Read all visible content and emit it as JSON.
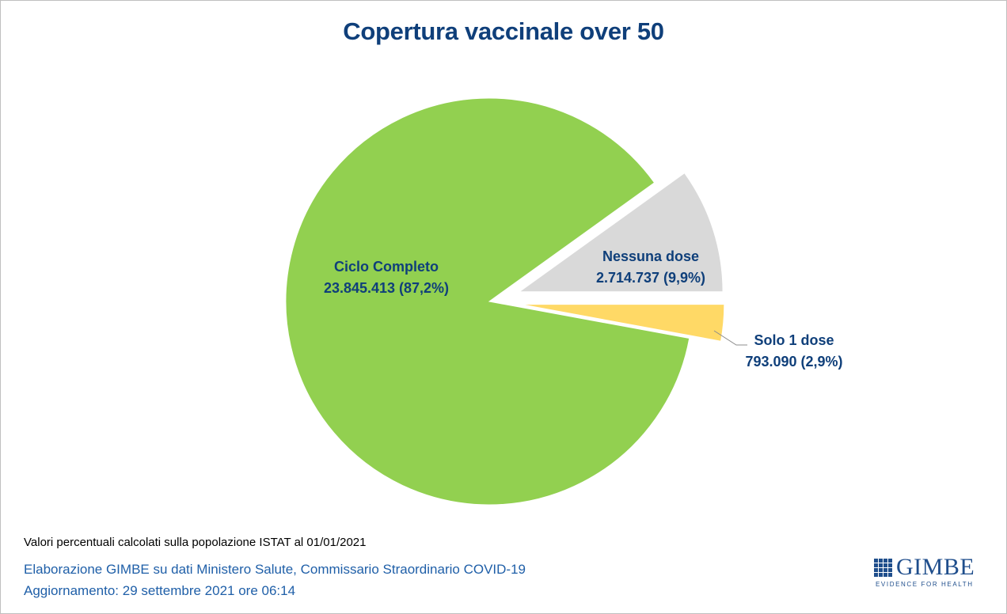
{
  "chart_data": {
    "type": "pie",
    "title": "Copertura vaccinale over 50",
    "slices": [
      {
        "name": "Nessuna dose",
        "value": 2714737,
        "percent": 9.9,
        "label_value": "2.714.737 (9,9%)",
        "color": "#d9d9d9",
        "exploded": true
      },
      {
        "name": "Solo 1 dose",
        "value": 793090,
        "percent": 2.9,
        "label_value": "793.090 (2,9%)",
        "color": "#ffd966",
        "exploded": true
      },
      {
        "name": "Ciclo Completo",
        "value": 23845413,
        "percent": 87.2,
        "label_value": "23.845.413 (87,2%)",
        "color": "#92d050",
        "exploded": false
      }
    ]
  },
  "footer": {
    "note": "Valori percentuali calcolati sulla popolazione ISTAT al 01/01/2021",
    "source": "Elaborazione GIMBE su dati Ministero Salute, Commissario Straordinario COVID-19",
    "updated": "Aggiornamento: 29 settembre 2021 ore 06:14"
  },
  "logo": {
    "name": "GIMBE",
    "tagline": "EVIDENCE FOR HEALTH"
  },
  "colors": {
    "title": "#0f3f7a",
    "credits": "#1f5fa8",
    "label": "#0f3f7a"
  }
}
